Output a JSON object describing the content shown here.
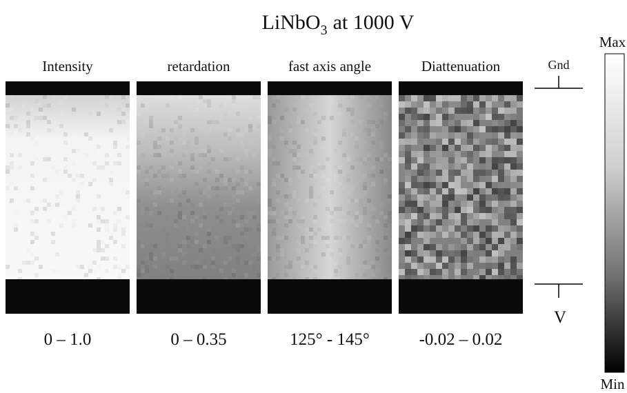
{
  "title": {
    "main": "LiNbO",
    "subscript": "3",
    "rest": "at 1000 V"
  },
  "panels": [
    {
      "label": "Intensity",
      "range": "0 – 1.0"
    },
    {
      "label": "retardation",
      "range": "0 – 0.35"
    },
    {
      "label": "fast axis angle",
      "range": "125° - 145°"
    },
    {
      "label": "Diattenuation",
      "range": "-0.02 – 0.02"
    }
  ],
  "electrodes": {
    "top": "Gnd",
    "bottom": "V"
  },
  "colorbar": {
    "max": "Max",
    "min": "Min"
  }
}
